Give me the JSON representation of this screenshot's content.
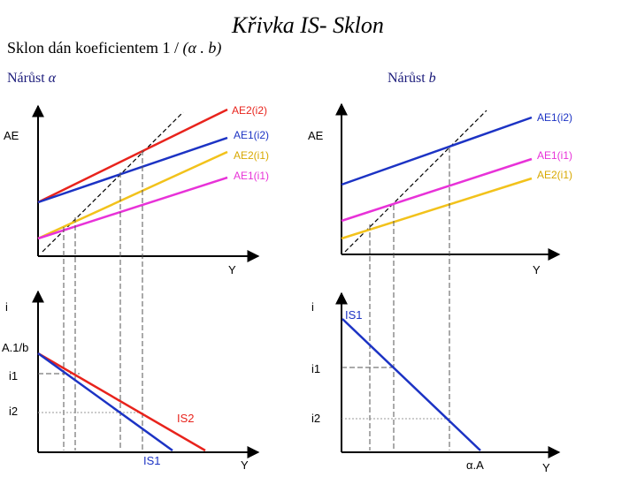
{
  "header": {
    "title": "Křivka IS- Sklon",
    "subtitle_prefix": "Sklon dán koeficientem 1 /",
    "subtitle_formula": "(α . b)"
  },
  "left": {
    "heading_prefix": "Nárůst",
    "heading_symbol": "α",
    "top": {
      "y_label": "AE",
      "x_label": "Y",
      "curves": [
        {
          "label": "AE2(i2)",
          "color": "#e8231c"
        },
        {
          "label": "AE1(i2)",
          "color": "#1c33c4"
        },
        {
          "label": "AE2(i1)",
          "color": "#f2c21b"
        },
        {
          "label": "AE1(i1)",
          "color": "#e832d8"
        }
      ]
    },
    "bottom": {
      "y_label": "i",
      "x_label": "Y",
      "intercept_label": "A.1/b",
      "i1_label": "i1",
      "i2_label": "i2",
      "curves": [
        {
          "label": "IS2",
          "color": "#e8231c"
        },
        {
          "label": "IS1",
          "color": "#1c33c4"
        }
      ]
    }
  },
  "right": {
    "heading_prefix": "Nárůst",
    "heading_symbol": "b",
    "top": {
      "y_label": "AE",
      "x_label": "Y",
      "curves": [
        {
          "label": "AE1(i2)",
          "color": "#1c33c4"
        },
        {
          "label": "AE1(i1)",
          "color": "#e832d8"
        },
        {
          "label": "AE2(i1)",
          "color": "#f2c21b"
        }
      ]
    },
    "bottom": {
      "y_label": "i",
      "x_label": "Y",
      "intercept_label": "α.A",
      "i1_label": "i1",
      "i2_label": "i2",
      "curves": [
        {
          "label": "IS1",
          "color": "#1c33c4"
        }
      ]
    }
  }
}
